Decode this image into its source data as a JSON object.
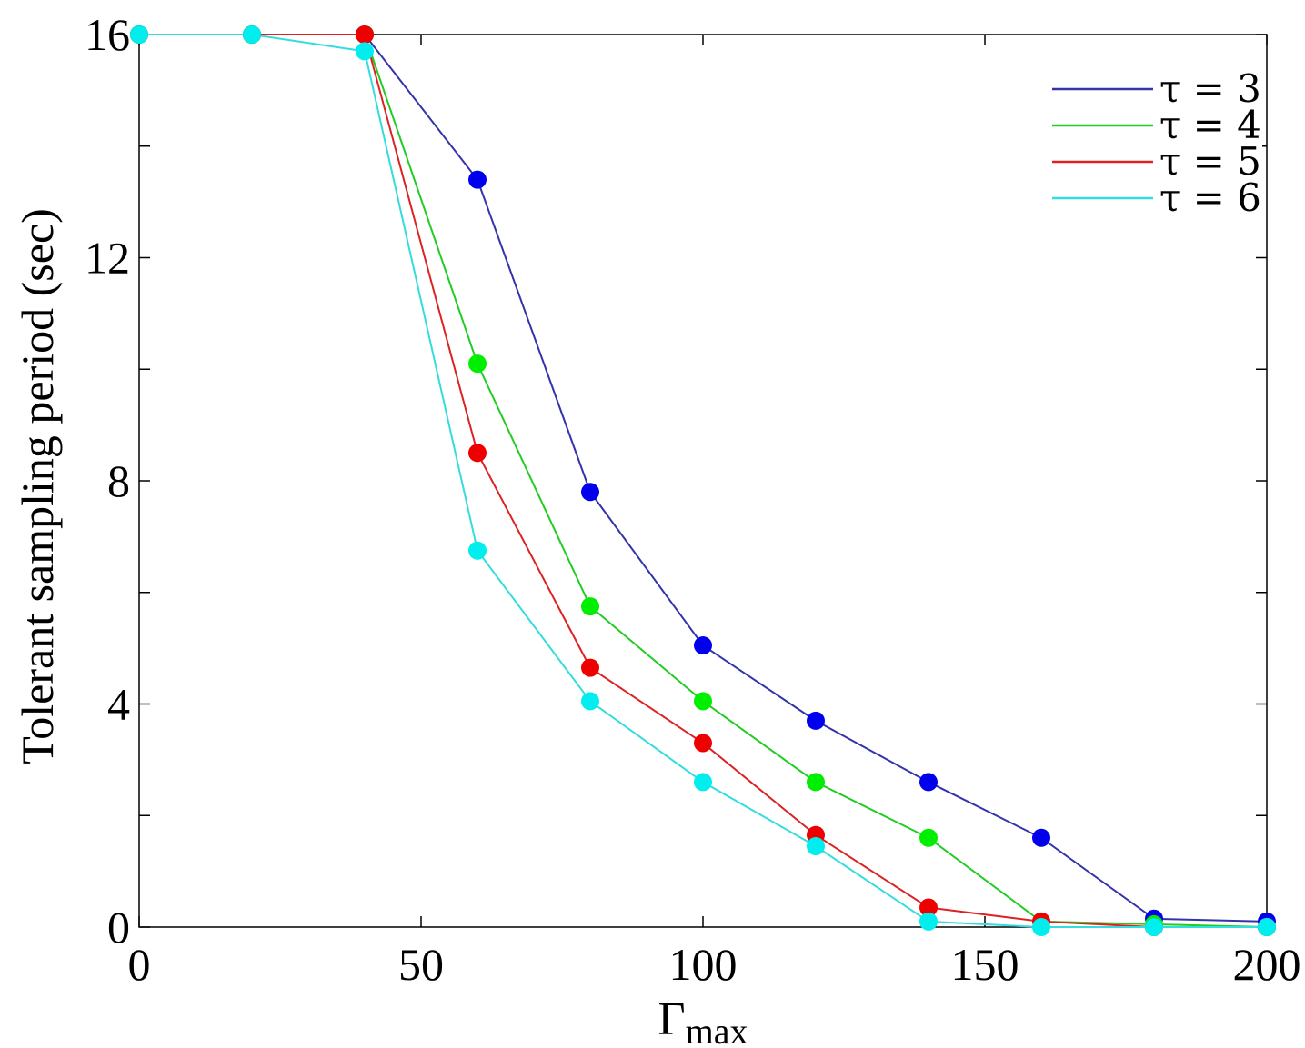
{
  "chart_data": {
    "type": "line",
    "xlabel": "Γ",
    "xlabel_sub": "max",
    "ylabel": "Tolerant sampling period (sec)",
    "xlim": [
      0,
      200
    ],
    "ylim": [
      0,
      16
    ],
    "xticks": [
      0,
      50,
      100,
      150,
      200
    ],
    "yticks": [
      0,
      4,
      8,
      12,
      16
    ],
    "grid": false,
    "legend_position": "top-right",
    "series": [
      {
        "name": "τ = 3",
        "color": "#3333aa",
        "marker_color": "#0000ee",
        "x": [
          0,
          20,
          40,
          60,
          80,
          100,
          120,
          140,
          160,
          180,
          200
        ],
        "y": [
          16,
          16,
          16,
          13.4,
          7.8,
          5.05,
          3.7,
          2.6,
          1.6,
          0.15,
          0.1
        ]
      },
      {
        "name": "τ = 4",
        "color": "#22cc22",
        "marker_color": "#00ee00",
        "x": [
          0,
          20,
          40,
          60,
          80,
          100,
          120,
          140,
          160,
          180,
          200
        ],
        "y": [
          16,
          16,
          16,
          10.1,
          5.75,
          4.05,
          2.6,
          1.6,
          0.1,
          0.05,
          0.0
        ]
      },
      {
        "name": "τ = 5",
        "color": "#dd2222",
        "marker_color": "#ee0000",
        "x": [
          0,
          20,
          40,
          60,
          80,
          100,
          120,
          140,
          160,
          180,
          200
        ],
        "y": [
          16,
          16,
          16,
          8.5,
          4.65,
          3.3,
          1.65,
          0.35,
          0.1,
          0.0,
          0.0
        ]
      },
      {
        "name": "τ = 6",
        "color": "#33dddd",
        "marker_color": "#00eeee",
        "x": [
          0,
          20,
          40,
          60,
          80,
          100,
          120,
          140,
          160,
          180,
          200
        ],
        "y": [
          16,
          16,
          15.7,
          6.75,
          4.05,
          2.6,
          1.45,
          0.1,
          0.0,
          0.0,
          0.0
        ]
      }
    ]
  }
}
